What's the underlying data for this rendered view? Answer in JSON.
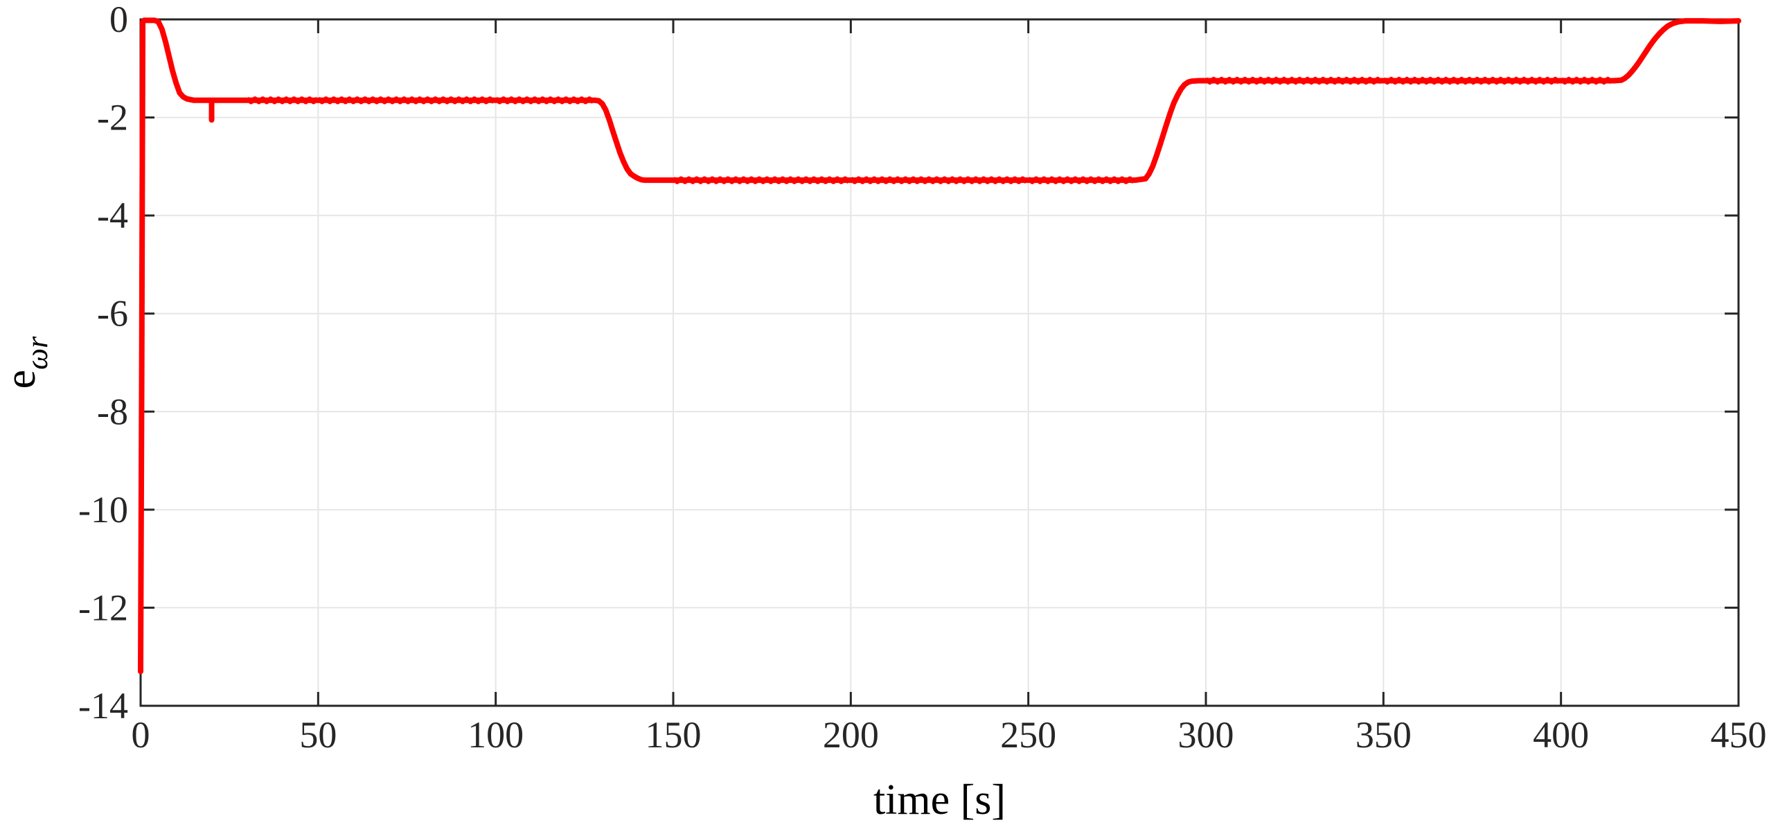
{
  "chart_data": {
    "type": "line",
    "title": "",
    "xlabel": "time [s]",
    "ylabel": "e",
    "ylabel_subscript": "ωr",
    "xlim": [
      0,
      450
    ],
    "ylim": [
      -14,
      0
    ],
    "xticks": [
      "0",
      "50",
      "100",
      "150",
      "200",
      "250",
      "300",
      "350",
      "400",
      "450"
    ],
    "yticks": [
      "0",
      "-2",
      "-4",
      "-6",
      "-8",
      "-10",
      "-12",
      "-14"
    ],
    "grid": true,
    "legend": "none",
    "series": [
      {
        "color": "#ff0000",
        "x": [
          0,
          0.3,
          0.6,
          1,
          2,
          4,
          5,
          6,
          7,
          8,
          9,
          10,
          11,
          12,
          13,
          15,
          18,
          20,
          20,
          20,
          22,
          30,
          50,
          100,
          128,
          129,
          130,
          131,
          132,
          133,
          134,
          135,
          136,
          137,
          138,
          139,
          140,
          141,
          142,
          143,
          145,
          150,
          200,
          250,
          280,
          283,
          284,
          285,
          286,
          287,
          288,
          289,
          290,
          291,
          292,
          293,
          294,
          295,
          296,
          298,
          300,
          350,
          400,
          415,
          417,
          418,
          419,
          420,
          421,
          422,
          423,
          424,
          425,
          426,
          427,
          428,
          429,
          430,
          431,
          432,
          433,
          434,
          435,
          437,
          440,
          445,
          450
        ],
        "y": [
          -13.3,
          -7.5,
          -0.05,
          -0.02,
          -0.02,
          -0.02,
          -0.05,
          -0.2,
          -0.45,
          -0.75,
          -1.05,
          -1.3,
          -1.5,
          -1.58,
          -1.62,
          -1.65,
          -1.65,
          -1.65,
          -2.05,
          -1.65,
          -1.65,
          -1.65,
          -1.65,
          -1.65,
          -1.65,
          -1.66,
          -1.72,
          -1.85,
          -2.05,
          -2.28,
          -2.5,
          -2.72,
          -2.9,
          -3.05,
          -3.15,
          -3.2,
          -3.24,
          -3.27,
          -3.28,
          -3.28,
          -3.28,
          -3.28,
          -3.28,
          -3.28,
          -3.28,
          -3.25,
          -3.15,
          -3.0,
          -2.8,
          -2.58,
          -2.35,
          -2.12,
          -1.9,
          -1.7,
          -1.55,
          -1.42,
          -1.33,
          -1.28,
          -1.26,
          -1.25,
          -1.25,
          -1.25,
          -1.25,
          -1.25,
          -1.24,
          -1.2,
          -1.14,
          -1.06,
          -0.97,
          -0.87,
          -0.76,
          -0.65,
          -0.54,
          -0.44,
          -0.35,
          -0.27,
          -0.2,
          -0.14,
          -0.1,
          -0.07,
          -0.05,
          -0.04,
          -0.03,
          -0.03,
          -0.03,
          -0.04,
          -0.03
        ]
      }
    ]
  }
}
